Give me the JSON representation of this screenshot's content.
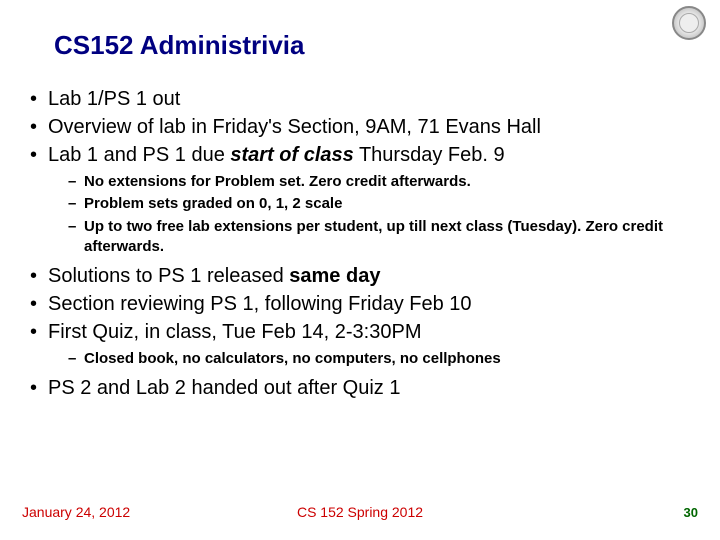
{
  "title": "CS152 Administrivia",
  "bullets": {
    "b1": "Lab 1/PS 1 out",
    "b2": "Overview of lab in Friday's Section, 9AM, 71 Evans Hall",
    "b3_pre": "Lab 1 and PS 1 due ",
    "b3_em": "start of class",
    "b3_post": " Thursday Feb. 9",
    "b3_sub1": "No extensions for Problem set. Zero credit afterwards.",
    "b3_sub2": "Problem sets graded on 0, 1, 2 scale",
    "b3_sub3": "Up to two free lab extensions per student, up till next class (Tuesday). Zero credit afterwards.",
    "b4_pre": "Solutions to PS 1 released ",
    "b4_bold": "same day",
    "b5": "Section reviewing PS 1, following Friday Feb 10",
    "b6": "First Quiz, in class, Tue Feb 14, 2-3:30PM",
    "b6_sub1": "Closed book, no calculators, no computers, no cellphones",
    "b7": "PS 2 and Lab 2 handed out after Quiz 1"
  },
  "footer": {
    "date": "January 24, 2012",
    "course": "CS 152 Spring 2012",
    "page": "30"
  },
  "colors": {
    "title": "#000080",
    "footer_text": "#cc0000",
    "page_num": "#006600",
    "body": "#000000",
    "background": "#ffffff"
  },
  "fonts": {
    "title_size_pt": 26,
    "bullet_size_pt": 20,
    "sub_bullet_size_pt": 15,
    "footer_size_pt": 14
  }
}
